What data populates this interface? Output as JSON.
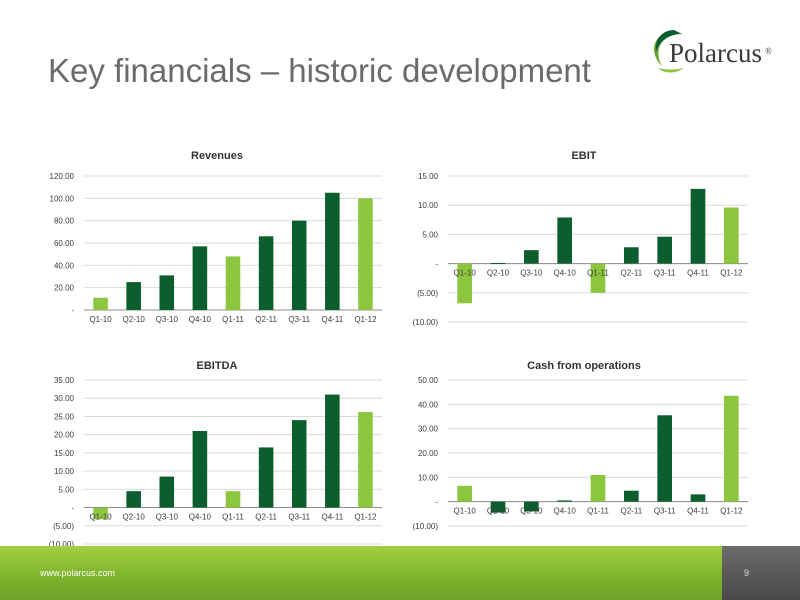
{
  "slide": {
    "title": "Key financials – historic development",
    "logo_text": "Polarcus",
    "logo_mark": "®",
    "footer_url": "www.polarcus.com",
    "page_number": "9"
  },
  "colors": {
    "dark_green": "#0c5e2e",
    "light_green": "#8cc63f",
    "gridline": "#d9d9d9"
  },
  "chart_data": [
    {
      "type": "bar",
      "title": "Revenues",
      "categories": [
        "Q1-10",
        "Q2-10",
        "Q3-10",
        "Q4-10",
        "Q1-11",
        "Q2-11",
        "Q3-11",
        "Q4-11",
        "Q1-12"
      ],
      "values": [
        11,
        25,
        31,
        57,
        48,
        66,
        80,
        105,
        100
      ],
      "highlight": [
        true,
        false,
        false,
        false,
        true,
        false,
        false,
        false,
        true
      ],
      "yticks": [
        "-",
        "20.00",
        "40.00",
        "60.00",
        "80.00",
        "100.00",
        "120.00"
      ],
      "ylim": [
        0,
        120
      ],
      "grid": true
    },
    {
      "type": "bar",
      "title": "EBIT",
      "categories": [
        "Q1-10",
        "Q2-10",
        "Q3-10",
        "Q4-10",
        "Q1-11",
        "Q2-11",
        "Q3-11",
        "Q4-11",
        "Q1-12"
      ],
      "values": [
        -6.8,
        0.1,
        2.3,
        7.9,
        -5.0,
        2.8,
        4.6,
        12.8,
        9.6
      ],
      "highlight": [
        true,
        false,
        false,
        false,
        true,
        false,
        false,
        false,
        true
      ],
      "yticks": [
        "(10.00)",
        "(5.00)",
        "-",
        "5.00",
        "10.00",
        "15.00"
      ],
      "ylim": [
        -10,
        15
      ],
      "grid": true
    },
    {
      "type": "bar",
      "title": "EBITDA",
      "categories": [
        "Q1-10",
        "Q2-10",
        "Q3-10",
        "Q4-10",
        "Q1-11",
        "Q2-11",
        "Q3-11",
        "Q4-11",
        "Q1-12"
      ],
      "values": [
        -3.2,
        4.5,
        8.5,
        21.0,
        4.5,
        16.5,
        24.0,
        31.0,
        26.2
      ],
      "highlight": [
        true,
        false,
        false,
        false,
        true,
        false,
        false,
        false,
        true
      ],
      "yticks": [
        "(10.00)",
        "(5.00)",
        "-",
        "5.00",
        "10.00",
        "15.00",
        "20.00",
        "25.00",
        "30.00",
        "35.00"
      ],
      "ylim": [
        -10,
        35
      ],
      "grid": true
    },
    {
      "type": "bar",
      "title": "Cash from operations",
      "categories": [
        "Q1-10",
        "Q2-10",
        "Q3-10",
        "Q4-10",
        "Q1-11",
        "Q2-11",
        "Q3-11",
        "Q4-11",
        "Q1-12"
      ],
      "values": [
        6.5,
        -4.5,
        -4.0,
        0.5,
        11.0,
        4.5,
        35.5,
        3.0,
        43.5
      ],
      "highlight": [
        true,
        false,
        false,
        false,
        true,
        false,
        false,
        false,
        true
      ],
      "yticks": [
        "(10.00)",
        "-",
        "10.00",
        "20.00",
        "30.00",
        "40.00",
        "50.00"
      ],
      "ylim": [
        -10,
        50
      ],
      "grid": true
    }
  ]
}
